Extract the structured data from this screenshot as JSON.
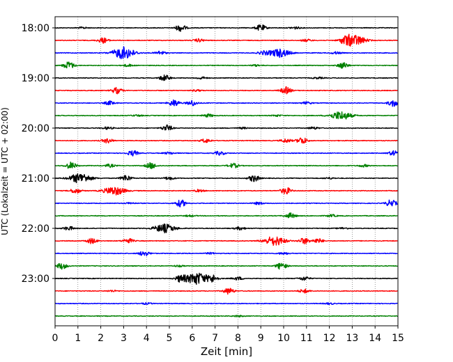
{
  "chart_data": {
    "type": "line",
    "subtype": "seismic-helicorder",
    "xlabel": "Zeit  [min]",
    "ylabel": "UTC (Lokalzeit = UTC + 02:00)",
    "xlim": [
      0,
      15
    ],
    "x_ticks": [
      "0",
      "1",
      "2",
      "3",
      "4",
      "5",
      "6",
      "7",
      "8",
      "9",
      "10",
      "11",
      "12",
      "13",
      "14",
      "15"
    ],
    "y_tick_labels": [
      "18:00",
      "19:00",
      "20:00",
      "21:00",
      "22:00",
      "23:00"
    ],
    "grid": "vertical-dotted",
    "line_minutes": 15,
    "color_cycle": [
      "#000000",
      "#ff0000",
      "#0000ff",
      "#008000"
    ],
    "traces": [
      {
        "start": "18:00",
        "events": [
          [
            5.5,
            9
          ],
          [
            9.0,
            8
          ],
          [
            10.5,
            3
          ],
          [
            1.2,
            2
          ]
        ]
      },
      {
        "start": "18:15",
        "events": [
          [
            2.1,
            7
          ],
          [
            6.3,
            4
          ],
          [
            12.7,
            8
          ],
          [
            13.1,
            14
          ],
          [
            11.0,
            3
          ]
        ]
      },
      {
        "start": "18:30",
        "events": [
          [
            3.0,
            16
          ],
          [
            4.6,
            5
          ],
          [
            9.8,
            11
          ],
          [
            9.1,
            4
          ],
          [
            12.3,
            3
          ]
        ]
      },
      {
        "start": "18:45",
        "events": [
          [
            0.6,
            10
          ],
          [
            12.6,
            8
          ],
          [
            3.2,
            3
          ],
          [
            8.8,
            2
          ]
        ]
      },
      {
        "start": "19:00",
        "events": [
          [
            4.8,
            8
          ],
          [
            6.4,
            3
          ],
          [
            11.5,
            2
          ]
        ]
      },
      {
        "start": "19:15",
        "events": [
          [
            2.7,
            8
          ],
          [
            10.1,
            9
          ],
          [
            6.2,
            2
          ]
        ]
      },
      {
        "start": "19:30",
        "events": [
          [
            2.4,
            5
          ],
          [
            5.2,
            9
          ],
          [
            6.0,
            7
          ],
          [
            14.8,
            9
          ],
          [
            11.0,
            3
          ]
        ]
      },
      {
        "start": "19:45",
        "events": [
          [
            12.5,
            11
          ],
          [
            6.7,
            4
          ],
          [
            3.6,
            2
          ],
          [
            9.7,
            2
          ]
        ]
      },
      {
        "start": "20:00",
        "events": [
          [
            4.9,
            8
          ],
          [
            2.3,
            3
          ],
          [
            11.3,
            3
          ],
          [
            8.2,
            2
          ]
        ]
      },
      {
        "start": "20:15",
        "events": [
          [
            2.3,
            6
          ],
          [
            6.6,
            5
          ],
          [
            10.8,
            9
          ],
          [
            10.1,
            5
          ]
        ]
      },
      {
        "start": "20:30",
        "events": [
          [
            3.4,
            7
          ],
          [
            7.2,
            5
          ],
          [
            14.8,
            6
          ],
          [
            5.0,
            3
          ]
        ]
      },
      {
        "start": "20:45",
        "events": [
          [
            0.7,
            9
          ],
          [
            4.2,
            8
          ],
          [
            7.8,
            6
          ],
          [
            2.4,
            4
          ],
          [
            13.5,
            3
          ]
        ]
      },
      {
        "start": "21:00",
        "events": [
          [
            1.1,
            13
          ],
          [
            3.1,
            8
          ],
          [
            8.7,
            9
          ],
          [
            5.0,
            4
          ],
          [
            12.0,
            2
          ]
        ]
      },
      {
        "start": "21:15",
        "events": [
          [
            0.9,
            7
          ],
          [
            2.6,
            11
          ],
          [
            10.1,
            9
          ],
          [
            6.3,
            3
          ]
        ]
      },
      {
        "start": "21:30",
        "events": [
          [
            5.5,
            9
          ],
          [
            14.7,
            9
          ],
          [
            8.9,
            3
          ],
          [
            3.3,
            2
          ]
        ]
      },
      {
        "start": "21:45",
        "events": [
          [
            10.3,
            7
          ],
          [
            12.1,
            3
          ],
          [
            5.9,
            2
          ]
        ]
      },
      {
        "start": "22:00",
        "events": [
          [
            0.6,
            5
          ],
          [
            4.8,
            11
          ],
          [
            8.1,
            4
          ],
          [
            12.6,
            2
          ]
        ]
      },
      {
        "start": "22:15",
        "events": [
          [
            1.6,
            7
          ],
          [
            3.2,
            6
          ],
          [
            9.6,
            12
          ],
          [
            10.9,
            8
          ],
          [
            11.5,
            6
          ]
        ]
      },
      {
        "start": "22:30",
        "events": [
          [
            3.9,
            7
          ],
          [
            10.0,
            3
          ],
          [
            6.8,
            2
          ]
        ]
      },
      {
        "start": "22:45",
        "events": [
          [
            0.3,
            8
          ],
          [
            9.9,
            9
          ],
          [
            5.4,
            2
          ]
        ]
      },
      {
        "start": "23:00",
        "events": [
          [
            6.2,
            16
          ],
          [
            5.5,
            9
          ],
          [
            6.9,
            9
          ],
          [
            8.0,
            4
          ],
          [
            10.9,
            5
          ]
        ]
      },
      {
        "start": "23:15",
        "events": [
          [
            7.6,
            8
          ],
          [
            10.9,
            5
          ],
          [
            2.5,
            2
          ]
        ]
      },
      {
        "start": "23:30",
        "events": [
          [
            4.0,
            2
          ],
          [
            12.0,
            2
          ]
        ]
      },
      {
        "start": "23:45",
        "events": [
          [
            8.0,
            2
          ]
        ]
      }
    ]
  }
}
